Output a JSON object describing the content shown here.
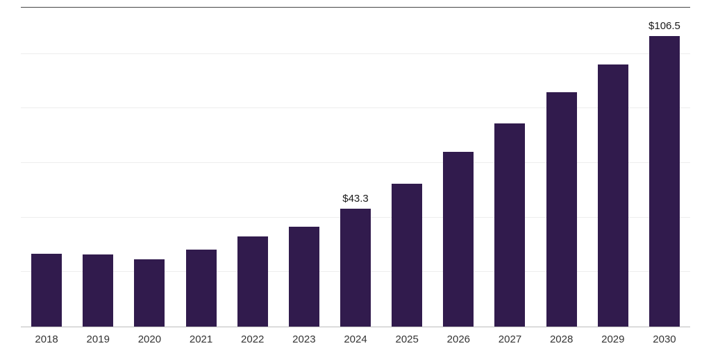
{
  "chart_data": {
    "type": "bar",
    "title": "",
    "xlabel": "",
    "ylabel": "",
    "categories": [
      "2018",
      "2019",
      "2020",
      "2021",
      "2022",
      "2023",
      "2024",
      "2025",
      "2026",
      "2027",
      "2028",
      "2029",
      "2030"
    ],
    "values": [
      26.7,
      26.5,
      24.7,
      28.3,
      33.1,
      36.7,
      43.3,
      52.4,
      64.2,
      74.6,
      86.0,
      96.2,
      106.5
    ],
    "annotations": [
      {
        "category": "2024",
        "text": "$43.3"
      },
      {
        "category": "2030",
        "text": "$106.5"
      }
    ],
    "ylim": [
      0,
      117
    ],
    "gridline_values": [
      20,
      40,
      60,
      80,
      100
    ],
    "grid": true,
    "legend": false,
    "bar_color": "#311b4d",
    "background_color": "#ffffff",
    "gridline_color": "#ededed",
    "baseline_color": "#bdbdbd",
    "top_border_color": "#454545",
    "label_color": "#333333"
  }
}
